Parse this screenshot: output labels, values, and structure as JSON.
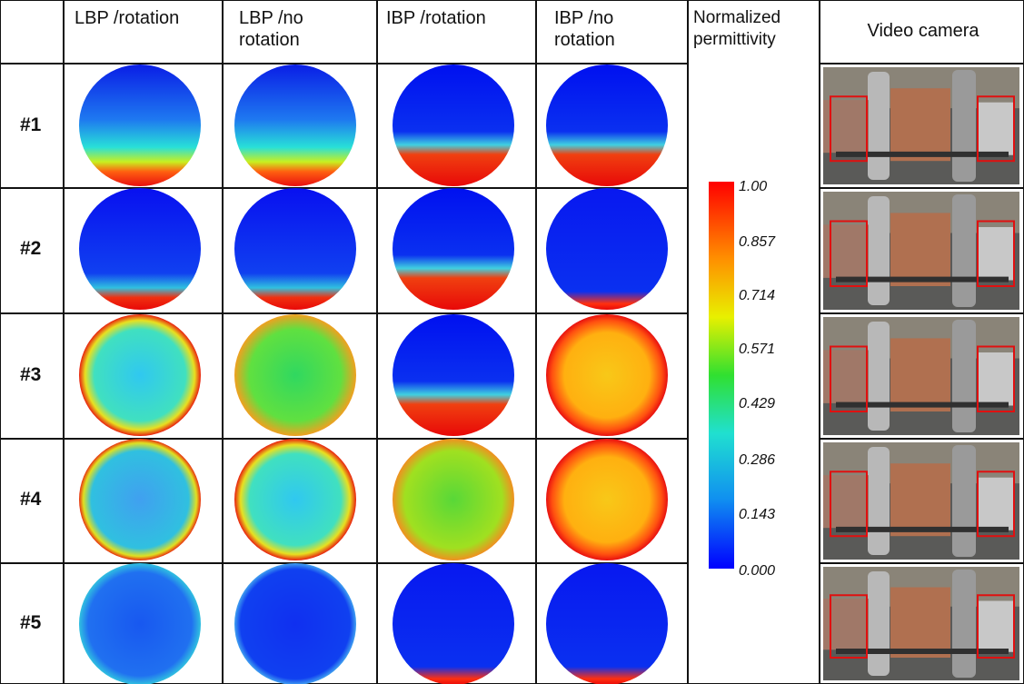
{
  "table": {
    "header": [
      "LBP /rotation",
      "LBP /no rotation",
      "IBP /rotation",
      "IBP /no rotation",
      "Normalized permittivity",
      "Video camera"
    ],
    "rows": [
      "#1",
      "#2",
      "#3",
      "#4",
      "#5"
    ]
  },
  "colorbar": {
    "ticks": [
      "1.00",
      "0.857",
      "0.714",
      "0.571",
      "0.429",
      "0.286",
      "0.143",
      "0.000"
    ]
  }
}
